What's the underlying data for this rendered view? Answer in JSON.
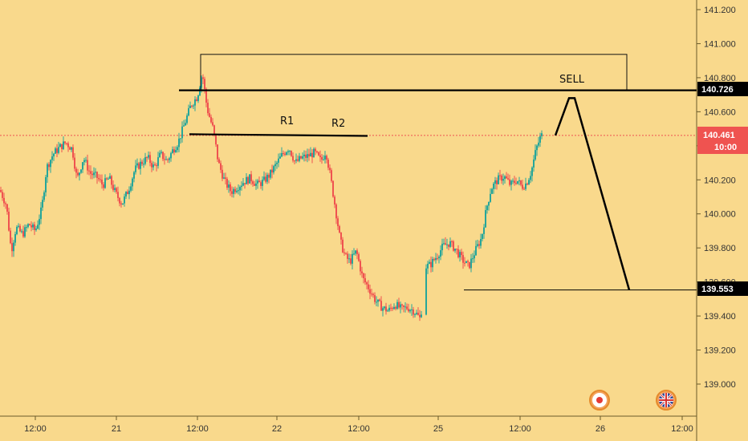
{
  "chart_data": {
    "type": "candlestick",
    "title": "",
    "x_ticks": [
      "12:00",
      "21",
      "12:00",
      "22",
      "12:00",
      "25",
      "12:00",
      "26",
      "12:00"
    ],
    "y_ticks": [
      "141.200",
      "141.000",
      "140.800",
      "140.600",
      "140.400",
      "140.200",
      "140.000",
      "139.800",
      "139.600",
      "139.400",
      "139.200",
      "139.000"
    ],
    "ylim": [
      138.84,
      141.26
    ],
    "price_path": [
      [
        0,
        140.14
      ],
      [
        8,
        140.05
      ],
      [
        14,
        139.78
      ],
      [
        20,
        139.92
      ],
      [
        28,
        139.88
      ],
      [
        36,
        139.94
      ],
      [
        44,
        139.9
      ],
      [
        52,
        140.03
      ],
      [
        58,
        140.27
      ],
      [
        66,
        140.35
      ],
      [
        74,
        140.39
      ],
      [
        82,
        140.42
      ],
      [
        90,
        140.38
      ],
      [
        96,
        140.2
      ],
      [
        104,
        140.33
      ],
      [
        112,
        140.24
      ],
      [
        120,
        140.22
      ],
      [
        128,
        140.17
      ],
      [
        136,
        140.21
      ],
      [
        144,
        140.12
      ],
      [
        152,
        140.06
      ],
      [
        160,
        140.14
      ],
      [
        168,
        140.26
      ],
      [
        176,
        140.3
      ],
      [
        184,
        140.33
      ],
      [
        192,
        140.27
      ],
      [
        200,
        140.35
      ],
      [
        208,
        140.31
      ],
      [
        216,
        140.38
      ],
      [
        222,
        140.42
      ],
      [
        230,
        140.53
      ],
      [
        238,
        140.64
      ],
      [
        246,
        140.69
      ],
      [
        252,
        140.83
      ],
      [
        258,
        140.62
      ],
      [
        266,
        140.49
      ],
      [
        272,
        140.3
      ],
      [
        280,
        140.19
      ],
      [
        288,
        140.13
      ],
      [
        296,
        140.16
      ],
      [
        304,
        140.19
      ],
      [
        312,
        140.21
      ],
      [
        320,
        140.17
      ],
      [
        328,
        140.19
      ],
      [
        336,
        140.23
      ],
      [
        344,
        140.29
      ],
      [
        352,
        140.35
      ],
      [
        360,
        140.39
      ],
      [
        368,
        140.3
      ],
      [
        376,
        140.33
      ],
      [
        384,
        140.34
      ],
      [
        392,
        140.36
      ],
      [
        400,
        140.31
      ],
      [
        406,
        140.37
      ],
      [
        412,
        140.21
      ],
      [
        418,
        140.03
      ],
      [
        424,
        139.84
      ],
      [
        430,
        139.75
      ],
      [
        436,
        139.72
      ],
      [
        444,
        139.78
      ],
      [
        452,
        139.62
      ],
      [
        460,
        139.56
      ],
      [
        468,
        139.49
      ],
      [
        476,
        139.45
      ],
      [
        484,
        139.43
      ],
      [
        492,
        139.47
      ],
      [
        500,
        139.44
      ],
      [
        508,
        139.45
      ],
      [
        516,
        139.43
      ],
      [
        524,
        139.38
      ],
      [
        530,
        139.69
      ],
      [
        536,
        139.7
      ],
      [
        544,
        139.75
      ],
      [
        552,
        139.81
      ],
      [
        560,
        139.83
      ],
      [
        568,
        139.79
      ],
      [
        576,
        139.73
      ],
      [
        584,
        139.69
      ],
      [
        592,
        139.78
      ],
      [
        600,
        139.86
      ],
      [
        606,
        140.03
      ],
      [
        612,
        140.15
      ],
      [
        620,
        140.2
      ],
      [
        628,
        140.22
      ],
      [
        636,
        140.17
      ],
      [
        644,
        140.2
      ],
      [
        650,
        140.16
      ],
      [
        656,
        140.18
      ],
      [
        662,
        140.25
      ],
      [
        668,
        140.38
      ],
      [
        674,
        140.46
      ],
      [
        676,
        140.461
      ]
    ],
    "levels": [
      {
        "price": "140.726",
        "value": 140.726
      },
      {
        "price": "140.461",
        "value": 140.461,
        "time": "10:00"
      },
      {
        "price": "139.553",
        "value": 139.553
      }
    ],
    "annotations": [
      "R1",
      "R2",
      "SELL"
    ],
    "projection": [
      {
        "t": 692,
        "price": 140.461
      },
      {
        "t": 709,
        "price": 140.68
      },
      {
        "t": 716,
        "price": 140.68
      },
      {
        "t": 784,
        "price": 139.553
      }
    ],
    "supply_zone": {
      "top": 140.937,
      "bottom": 140.726
    },
    "resistance_line": {
      "price": 140.463
    },
    "grid": false,
    "colors": {
      "background": "#f9d98c",
      "up": "#26a69a",
      "down": "#ef5350",
      "current_price": "#ef5350",
      "level": "#000000"
    },
    "event_icons": [
      "japan-flag-icon",
      "uk-flag-icon"
    ]
  }
}
